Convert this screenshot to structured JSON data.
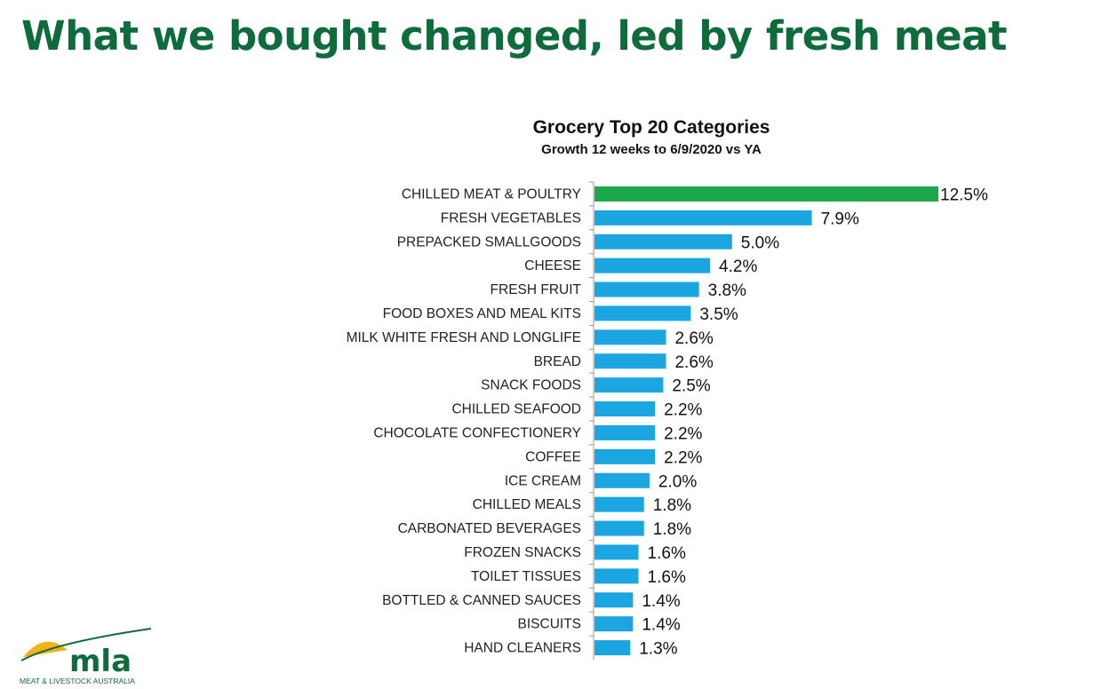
{
  "slide": {
    "title": "What we bought changed, led by fresh meat"
  },
  "logo": {
    "wordmark": "mla",
    "subtitle": "MEAT & LIVESTOCK AUSTRALIA"
  },
  "colors": {
    "title": "#0e6b3c",
    "highlight_bar": "#1aa84a",
    "bar": "#1ba6e2",
    "logo_sun": "#f2b21b"
  },
  "chart_data": {
    "type": "bar",
    "orientation": "horizontal",
    "title": "Grocery Top 20 Categories",
    "subtitle": "Growth 12 weeks to 6/9/2020 vs YA",
    "categories": [
      "CHILLED MEAT & POULTRY",
      "FRESH VEGETABLES",
      "PREPACKED SMALLGOODS",
      "CHEESE",
      "FRESH FRUIT",
      "FOOD BOXES AND MEAL KITS",
      "MILK WHITE FRESH AND LONGLIFE",
      "BREAD",
      "SNACK FOODS",
      "CHILLED SEAFOOD",
      "CHOCOLATE CONFECTIONERY",
      "COFFEE",
      "ICE CREAM",
      "CHILLED MEALS",
      "CARBONATED BEVERAGES",
      "FROZEN SNACKS",
      "TOILET TISSUES",
      "BOTTLED & CANNED SAUCES",
      "BISCUITS",
      "HAND CLEANERS"
    ],
    "values": [
      12.5,
      7.9,
      5.0,
      4.2,
      3.8,
      3.5,
      2.6,
      2.6,
      2.5,
      2.2,
      2.2,
      2.2,
      2.0,
      1.8,
      1.8,
      1.6,
      1.6,
      1.4,
      1.4,
      1.3
    ],
    "value_labels": [
      "12.5%",
      "7.9%",
      "5.0%",
      "4.2%",
      "3.8%",
      "3.5%",
      "2.6%",
      "2.6%",
      "2.5%",
      "2.2%",
      "2.2%",
      "2.2%",
      "2.0%",
      "1.8%",
      "1.8%",
      "1.6%",
      "1.6%",
      "1.4%",
      "1.4%",
      "1.3%"
    ],
    "highlight_index": 0,
    "xlim": [
      0,
      12.5
    ],
    "grid": false,
    "legend": "none"
  }
}
